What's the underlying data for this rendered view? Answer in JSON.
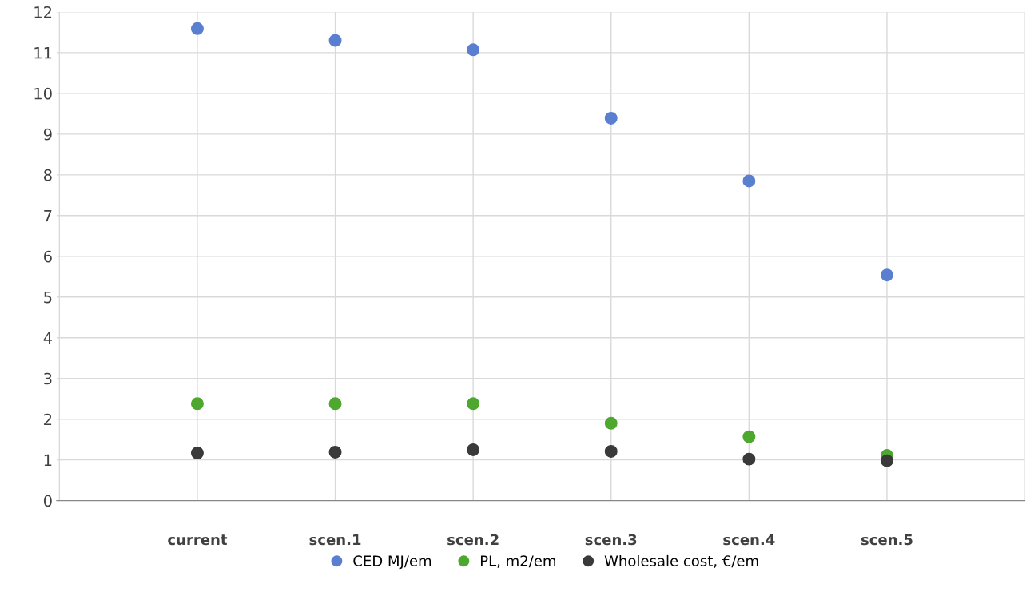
{
  "chart_data": {
    "type": "scatter",
    "categories": [
      null,
      "current",
      "scen.1",
      "scen.2",
      "scen.3",
      "scen.4",
      "scen.5",
      null
    ],
    "series": [
      {
        "name": "CED MJ/em",
        "color": "#5b7fd0",
        "values": [
          null,
          11.59,
          11.3,
          11.07,
          9.39,
          7.85,
          5.54,
          null
        ]
      },
      {
        "name": "PL, m2/em",
        "color": "#4ea72e",
        "values": [
          null,
          2.38,
          2.38,
          2.38,
          1.9,
          1.57,
          1.11,
          null
        ]
      },
      {
        "name": "Wholesale cost, €/em",
        "color": "#3a3a3a",
        "values": [
          null,
          1.17,
          1.19,
          1.25,
          1.21,
          1.02,
          0.98,
          null
        ]
      }
    ],
    "ylim": [
      0,
      12
    ],
    "yticks": [
      0,
      1,
      2,
      3,
      4,
      5,
      6,
      7,
      8,
      9,
      10,
      11,
      12
    ],
    "grid": true,
    "legend": "bottom",
    "marker": "circle"
  }
}
